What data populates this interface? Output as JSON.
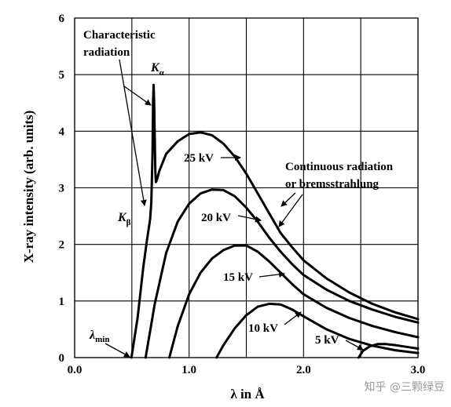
{
  "chart_data": {
    "type": "line",
    "xlabel": "λ in Å",
    "ylabel": "X-ray intensity (arb. units)",
    "xlim": [
      0,
      3.0
    ],
    "ylim": [
      0,
      6
    ],
    "xticks": [
      0,
      0.5,
      1.0,
      1.5,
      2.0,
      2.5,
      3.0
    ],
    "xtick_labels": [
      "0.0",
      "",
      "1.0",
      "",
      "2.0",
      "",
      "3.0"
    ],
    "yticks": [
      0,
      1,
      2,
      3,
      4,
      5,
      6
    ],
    "ytick_labels": [
      "0",
      "1",
      "2",
      "3",
      "4",
      "5",
      "6"
    ],
    "grid": true,
    "series": [
      {
        "name": "25 kV",
        "x": [
          0.496,
          0.55,
          0.6,
          0.63,
          0.66,
          0.67,
          0.68,
          0.685,
          0.69,
          0.695,
          0.705,
          0.71,
          0.72,
          0.74,
          0.8,
          0.9,
          1.0,
          1.1,
          1.2,
          1.3,
          1.4,
          1.5,
          1.6,
          1.7,
          1.8,
          1.9,
          2.0,
          2.2,
          2.4,
          2.6,
          2.8,
          3.0
        ],
        "y": [
          0,
          0.7,
          1.6,
          2.05,
          2.45,
          2.75,
          3.6,
          4.5,
          4.82,
          4.5,
          3.3,
          3.1,
          3.15,
          3.3,
          3.6,
          3.82,
          3.95,
          3.98,
          3.93,
          3.78,
          3.55,
          3.25,
          2.9,
          2.55,
          2.2,
          1.95,
          1.72,
          1.4,
          1.15,
          0.95,
          0.8,
          0.68
        ]
      },
      {
        "name": "20 kV",
        "x": [
          0.62,
          0.7,
          0.8,
          0.9,
          1.0,
          1.1,
          1.2,
          1.3,
          1.4,
          1.5,
          1.6,
          1.7,
          1.8,
          1.9,
          2.0,
          2.2,
          2.4,
          2.6,
          2.8,
          3.0
        ],
        "y": [
          0,
          0.95,
          1.85,
          2.4,
          2.72,
          2.9,
          2.97,
          2.96,
          2.85,
          2.65,
          2.4,
          2.12,
          1.87,
          1.65,
          1.46,
          1.2,
          1.0,
          0.85,
          0.72,
          0.62
        ]
      },
      {
        "name": "15 kV",
        "x": [
          0.827,
          0.9,
          1.0,
          1.1,
          1.2,
          1.3,
          1.4,
          1.5,
          1.6,
          1.7,
          1.8,
          1.9,
          2.0,
          2.2,
          2.4,
          2.6,
          2.8,
          3.0
        ],
        "y": [
          0,
          0.55,
          1.12,
          1.5,
          1.75,
          1.9,
          1.98,
          1.98,
          1.87,
          1.7,
          1.5,
          1.3,
          1.12,
          0.88,
          0.7,
          0.56,
          0.45,
          0.36
        ]
      },
      {
        "name": "10 kV",
        "x": [
          1.24,
          1.3,
          1.4,
          1.5,
          1.6,
          1.7,
          1.8,
          1.9,
          2.0,
          2.2,
          2.4,
          2.6,
          2.8,
          3.0
        ],
        "y": [
          0,
          0.22,
          0.52,
          0.75,
          0.9,
          0.95,
          0.94,
          0.85,
          0.73,
          0.5,
          0.33,
          0.21,
          0.13,
          0.08
        ]
      },
      {
        "name": "5 kV",
        "x": [
          2.48,
          2.52,
          2.58,
          2.65,
          2.72,
          2.8,
          2.9,
          3.0
        ],
        "y": [
          0,
          0.12,
          0.2,
          0.24,
          0.24,
          0.22,
          0.19,
          0.16
        ]
      }
    ],
    "annotations": {
      "characteristic_line1": "Characteristic",
      "characteristic_line2": "radiation",
      "k_alpha": "K",
      "k_alpha_sub": "α",
      "k_beta": "K",
      "k_beta_sub": "β",
      "lambda_min": "λ",
      "lambda_min_sub": "min",
      "continuous_line1": "Continuous radiation",
      "continuous_line2": "or bremsstrahlung"
    }
  },
  "watermark": "知乎 @三颗绿豆"
}
